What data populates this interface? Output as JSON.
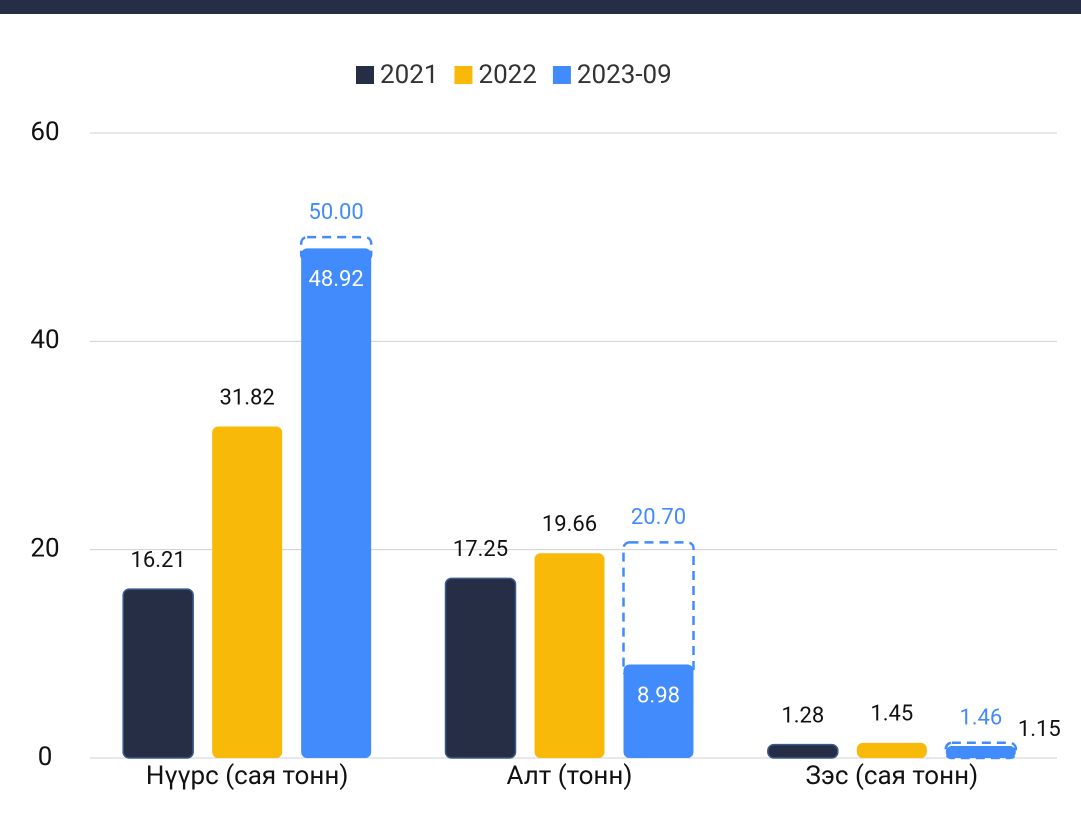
{
  "chart_data": {
    "type": "bar",
    "categories": [
      "Нүүрс (сая тонн)",
      "Алт (тонн)",
      "Зэс (сая тонн)"
    ],
    "series": [
      {
        "name": "2021",
        "color": "#262e45",
        "values": [
          16.21,
          17.25,
          1.28
        ]
      },
      {
        "name": "2022",
        "color": "#f9b908",
        "values": [
          31.82,
          19.66,
          1.45
        ]
      },
      {
        "name": "2023-09",
        "color": "#418bfc",
        "values": [
          48.92,
          8.98,
          1.15
        ],
        "targets": [
          50,
          20.7,
          1.46
        ],
        "target_labels": [
          "50.00",
          "20.70",
          "1.46"
        ]
      }
    ],
    "ylim": [
      0,
      60
    ],
    "yticks": [
      0,
      20,
      40,
      60
    ],
    "grid": true,
    "legend": "top"
  }
}
